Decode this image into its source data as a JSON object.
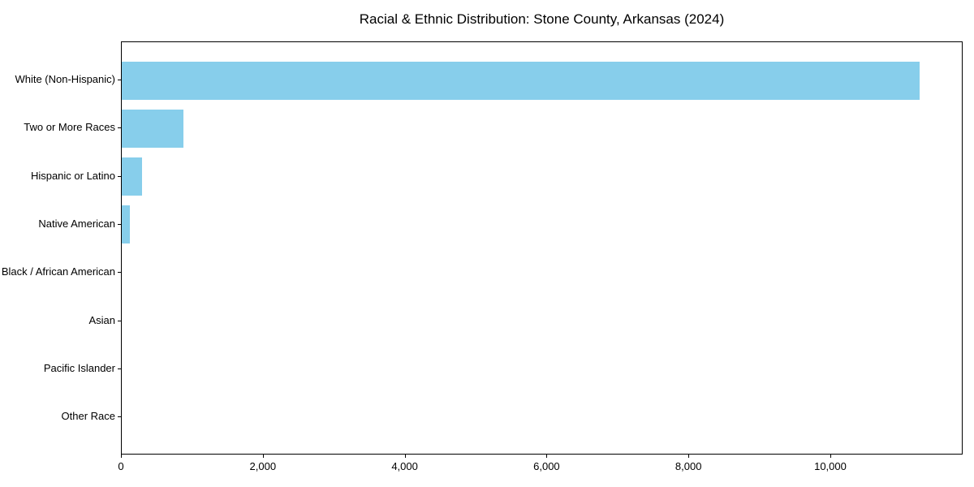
{
  "title": "Racial & Ethnic Distribution: Stone County, Arkansas (2024)",
  "chart_data": {
    "type": "bar",
    "orientation": "horizontal",
    "title": "Racial & Ethnic Distribution: Stone County, Arkansas (2024)",
    "xlabel": "",
    "ylabel": "",
    "categories": [
      "White (Non-Hispanic)",
      "Two or More Races",
      "Hispanic or Latino",
      "Native American",
      "Black / African American",
      "Asian",
      "Pacific Islander",
      "Other Race"
    ],
    "values": [
      11270,
      870,
      290,
      115,
      0,
      0,
      0,
      0
    ],
    "xlim": [
      0,
      11865
    ],
    "x_ticks": [
      0,
      2000,
      4000,
      6000,
      8000,
      10000
    ],
    "x_tick_labels": [
      "0",
      "2,000",
      "4,000",
      "6,000",
      "8,000",
      "10,000"
    ],
    "bar_color": "#87CEEB",
    "grid": false,
    "legend": null
  }
}
